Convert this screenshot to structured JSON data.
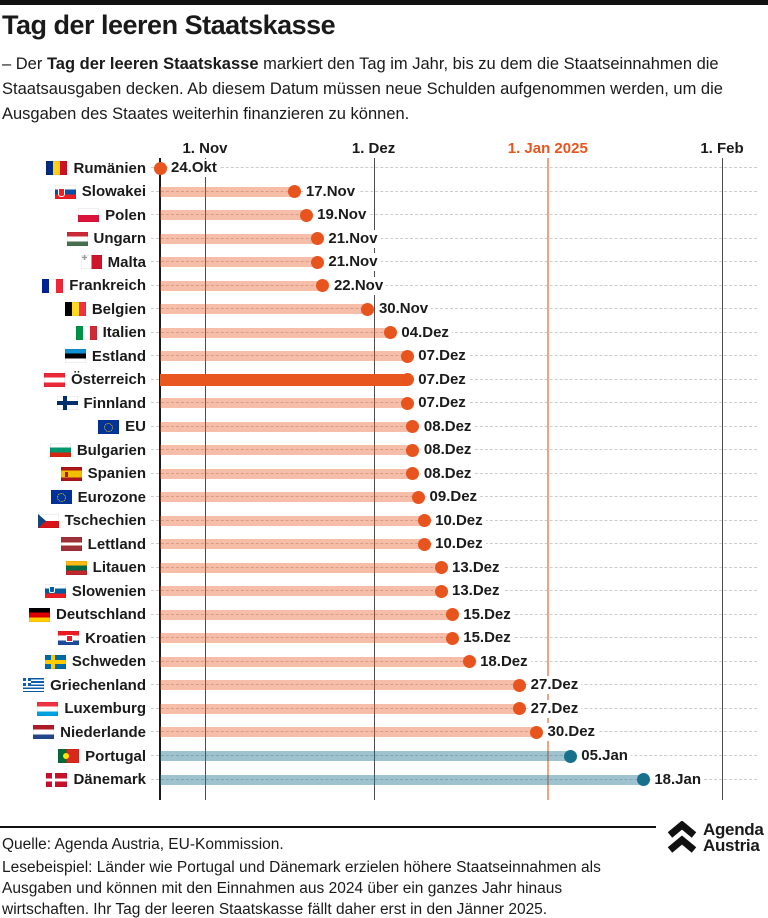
{
  "header": {
    "title": "Tag der leeren Staatskasse",
    "subtitle_prefix": "– Der ",
    "subtitle_bold": "Tag der leeren Staatskasse",
    "subtitle_rest": " markiert den Tag im Jahr, bis zu dem die Staatseinnahmen die Staatsausgaben decken. Ab diesem Datum müssen neue Schulden aufgenommen werden, um die Ausgaben des Staates weiterhin finanzieren zu können."
  },
  "chart_data": {
    "type": "bar",
    "orientation": "horizontal",
    "title": "Tag der leeren Staatskasse",
    "x_axis": "date",
    "xlim_days": [
      0,
      100
    ],
    "grid": "horizontal-dashed",
    "axis_ticks": [
      {
        "label": "1. Nov",
        "day": 8,
        "highlight": false
      },
      {
        "label": "1. Dez",
        "day": 38,
        "highlight": false
      },
      {
        "label": "1. Jan 2025",
        "day": 69,
        "highlight": true
      },
      {
        "label": "1. Feb",
        "day": 100,
        "highlight": false
      }
    ],
    "rows": [
      {
        "country": "Rumänien",
        "flag": "romania",
        "date": "24.Okt",
        "day": 0,
        "group": "orange",
        "highlight": false
      },
      {
        "country": "Slowakei",
        "flag": "slovakia",
        "date": "17.Nov",
        "day": 24,
        "group": "orange",
        "highlight": false
      },
      {
        "country": "Polen",
        "flag": "poland",
        "date": "19.Nov",
        "day": 26,
        "group": "orange",
        "highlight": false
      },
      {
        "country": "Ungarn",
        "flag": "hungary",
        "date": "21.Nov",
        "day": 28,
        "group": "orange",
        "highlight": false
      },
      {
        "country": "Malta",
        "flag": "malta",
        "date": "21.Nov",
        "day": 28,
        "group": "orange",
        "highlight": false
      },
      {
        "country": "Frankreich",
        "flag": "france",
        "date": "22.Nov",
        "day": 29,
        "group": "orange",
        "highlight": false
      },
      {
        "country": "Belgien",
        "flag": "belgium",
        "date": "30.Nov",
        "day": 37,
        "group": "orange",
        "highlight": false
      },
      {
        "country": "Italien",
        "flag": "italy",
        "date": "04.Dez",
        "day": 41,
        "group": "orange",
        "highlight": false
      },
      {
        "country": "Estland",
        "flag": "estonia",
        "date": "07.Dez",
        "day": 44,
        "group": "orange",
        "highlight": false
      },
      {
        "country": "Österreich",
        "flag": "austria",
        "date": "07.Dez",
        "day": 44,
        "group": "orange",
        "highlight": true
      },
      {
        "country": "Finnland",
        "flag": "finland",
        "date": "07.Dez",
        "day": 44,
        "group": "orange",
        "highlight": false
      },
      {
        "country": "EU",
        "flag": "eu",
        "date": "08.Dez",
        "day": 45,
        "group": "orange",
        "highlight": false
      },
      {
        "country": "Bulgarien",
        "flag": "bulgaria",
        "date": "08.Dez",
        "day": 45,
        "group": "orange",
        "highlight": false
      },
      {
        "country": "Spanien",
        "flag": "spain",
        "date": "08.Dez",
        "day": 45,
        "group": "orange",
        "highlight": false
      },
      {
        "country": "Eurozone",
        "flag": "eurozone",
        "date": "09.Dez",
        "day": 46,
        "group": "orange",
        "highlight": false
      },
      {
        "country": "Tschechien",
        "flag": "czechia",
        "date": "10.Dez",
        "day": 47,
        "group": "orange",
        "highlight": false
      },
      {
        "country": "Lettland",
        "flag": "latvia",
        "date": "10.Dez",
        "day": 47,
        "group": "orange",
        "highlight": false
      },
      {
        "country": "Litauen",
        "flag": "lithuania",
        "date": "13.Dez",
        "day": 50,
        "group": "orange",
        "highlight": false
      },
      {
        "country": "Slowenien",
        "flag": "slovenia",
        "date": "13.Dez",
        "day": 50,
        "group": "orange",
        "highlight": false
      },
      {
        "country": "Deutschland",
        "flag": "germany",
        "date": "15.Dez",
        "day": 52,
        "group": "orange",
        "highlight": false
      },
      {
        "country": "Kroatien",
        "flag": "croatia",
        "date": "15.Dez",
        "day": 52,
        "group": "orange",
        "highlight": false
      },
      {
        "country": "Schweden",
        "flag": "sweden",
        "date": "18.Dez",
        "day": 55,
        "group": "orange",
        "highlight": false
      },
      {
        "country": "Griechenland",
        "flag": "greece",
        "date": "27.Dez",
        "day": 64,
        "group": "orange",
        "highlight": false
      },
      {
        "country": "Luxemburg",
        "flag": "luxembourg",
        "date": "27.Dez",
        "day": 64,
        "group": "orange",
        "highlight": false
      },
      {
        "country": "Niederlande",
        "flag": "netherlands",
        "date": "30.Dez",
        "day": 67,
        "group": "orange",
        "highlight": false
      },
      {
        "country": "Portugal",
        "flag": "portugal",
        "date": "05.Jan",
        "day": 73,
        "group": "teal",
        "highlight": false
      },
      {
        "country": "Dänemark",
        "flag": "denmark",
        "date": "18.Jan",
        "day": 86,
        "group": "teal",
        "highlight": false
      }
    ],
    "colors": {
      "orange_dot": "#E8541D",
      "orange_bar": "rgba(232,84,29,0.38)",
      "highlight_bar": "#E8571F",
      "teal_dot": "#17718C",
      "teal_bar": "rgba(23,113,140,0.42)",
      "jan_line": "#F5A183",
      "gridline": "#4d4d4d",
      "dash": "#cccccc"
    }
  },
  "footer": {
    "source": "Quelle: Agenda Austria, EU-Kommission.",
    "note": "Lesebeispiel: Länder wie Portugal und Dänemark erzielen höhere Staatseinnahmen als Ausgaben und können mit den Einnahmen aus 2024 über ein ganzes Jahr hinaus wirtschaften. Ihr Tag der leeren Staatskasse fällt daher erst in den Jänner 2025.",
    "logo_line1": "Agenda",
    "logo_line2": "Austria"
  }
}
